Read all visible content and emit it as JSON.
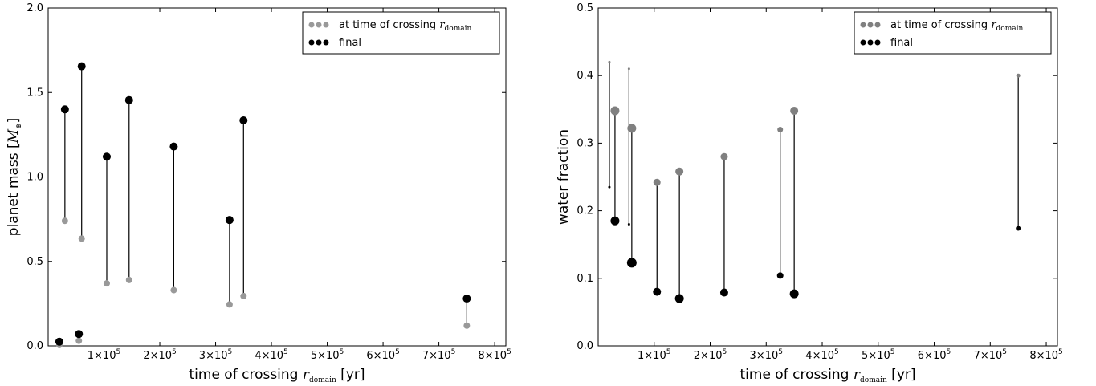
{
  "colors": {
    "initial": "#999999",
    "initial_right": "#808080",
    "final": "#000000",
    "line": "#000000"
  },
  "chart_data": [
    {
      "type": "scatter",
      "subtype": "dumbbell",
      "xlabel": "time of crossing r_domain [yr]",
      "xlabel_parts": {
        "pre": "time of crossing ",
        "var": "r",
        "sub": "domain",
        "post": " [yr]"
      },
      "ylabel": "planet mass [M_⊕]",
      "ylabel_parts": {
        "pre": "planet mass [",
        "var": "M",
        "sub": "⊕",
        "post": "]"
      },
      "xlim": [
        0,
        820000
      ],
      "ylim": [
        0,
        2.0
      ],
      "x_ticks": [
        100000,
        200000,
        300000,
        400000,
        500000,
        600000,
        700000,
        800000
      ],
      "x_tick_mantissa": [
        "1",
        "2",
        "3",
        "4",
        "5",
        "6",
        "7",
        "8"
      ],
      "x_tick_base": "10",
      "x_tick_exp": "5",
      "y_ticks": [
        0.0,
        0.5,
        1.0,
        1.5,
        2.0
      ],
      "y_tick_labels": [
        "0.0",
        "0.5",
        "1.0",
        "1.5",
        "2.0"
      ],
      "legend_position": "top-right",
      "legend": [
        {
          "label_pre": "at time of crossing ",
          "label_var": "r",
          "label_sub": "domain",
          "role": "initial"
        },
        {
          "label_pre": "final",
          "role": "final"
        }
      ],
      "series": [
        {
          "name": "at time of crossing r_domain",
          "points": [
            [
              20000,
              0.005
            ],
            [
              30000,
              0.74
            ],
            [
              55000,
              0.03
            ],
            [
              60000,
              0.635
            ],
            [
              105000,
              0.37
            ],
            [
              145000,
              0.39
            ],
            [
              225000,
              0.33
            ],
            [
              325000,
              0.245
            ],
            [
              350000,
              0.295
            ],
            [
              750000,
              0.12
            ]
          ]
        },
        {
          "name": "final",
          "points": [
            [
              20000,
              0.025
            ],
            [
              30000,
              1.4
            ],
            [
              55000,
              0.07
            ],
            [
              60000,
              1.655
            ],
            [
              105000,
              1.12
            ],
            [
              145000,
              1.455
            ],
            [
              225000,
              1.18
            ],
            [
              325000,
              0.745
            ],
            [
              350000,
              1.335
            ],
            [
              750000,
              0.28
            ]
          ]
        }
      ]
    },
    {
      "type": "scatter",
      "subtype": "dumbbell",
      "xlabel": "time of crossing r_domain [yr]",
      "xlabel_parts": {
        "pre": "time of crossing ",
        "var": "r",
        "sub": "domain",
        "post": " [yr]"
      },
      "ylabel": "water fraction",
      "ylabel_parts": {
        "pre": "water fraction",
        "var": "",
        "sub": "",
        "post": ""
      },
      "xlim": [
        0,
        820000
      ],
      "ylim": [
        0,
        0.5
      ],
      "x_ticks": [
        100000,
        200000,
        300000,
        400000,
        500000,
        600000,
        700000,
        800000
      ],
      "x_tick_mantissa": [
        "1",
        "2",
        "3",
        "4",
        "5",
        "6",
        "7",
        "8"
      ],
      "x_tick_base": "10",
      "x_tick_exp": "5",
      "y_ticks": [
        0.0,
        0.1,
        0.2,
        0.3,
        0.4,
        0.5
      ],
      "y_tick_labels": [
        "0.0",
        "0.1",
        "0.2",
        "0.3",
        "0.4",
        "0.5"
      ],
      "legend_position": "top-right",
      "legend": [
        {
          "label_pre": "at time of crossing ",
          "label_var": "r",
          "label_sub": "domain",
          "role": "initial"
        },
        {
          "label_pre": "final",
          "role": "final"
        }
      ],
      "series": [
        {
          "name": "at time of crossing r_domain",
          "points": [
            [
              20000,
              0.42,
              1.5
            ],
            [
              30000,
              0.348,
              5.5
            ],
            [
              55000,
              0.41,
              1.5
            ],
            [
              60000,
              0.322,
              5.5
            ],
            [
              105000,
              0.242,
              4.5
            ],
            [
              145000,
              0.258,
              5
            ],
            [
              225000,
              0.28,
              4.5
            ],
            [
              325000,
              0.32,
              3.5
            ],
            [
              350000,
              0.348,
              5
            ],
            [
              750000,
              0.4,
              2.5
            ]
          ]
        },
        {
          "name": "final",
          "points": [
            [
              20000,
              0.235,
              1.5
            ],
            [
              30000,
              0.185,
              5.5
            ],
            [
              55000,
              0.18,
              1.5
            ],
            [
              60000,
              0.123,
              6
            ],
            [
              105000,
              0.08,
              5
            ],
            [
              145000,
              0.07,
              5.5
            ],
            [
              225000,
              0.079,
              5
            ],
            [
              325000,
              0.104,
              4
            ],
            [
              350000,
              0.077,
              5.5
            ],
            [
              750000,
              0.174,
              3
            ]
          ]
        }
      ]
    }
  ]
}
